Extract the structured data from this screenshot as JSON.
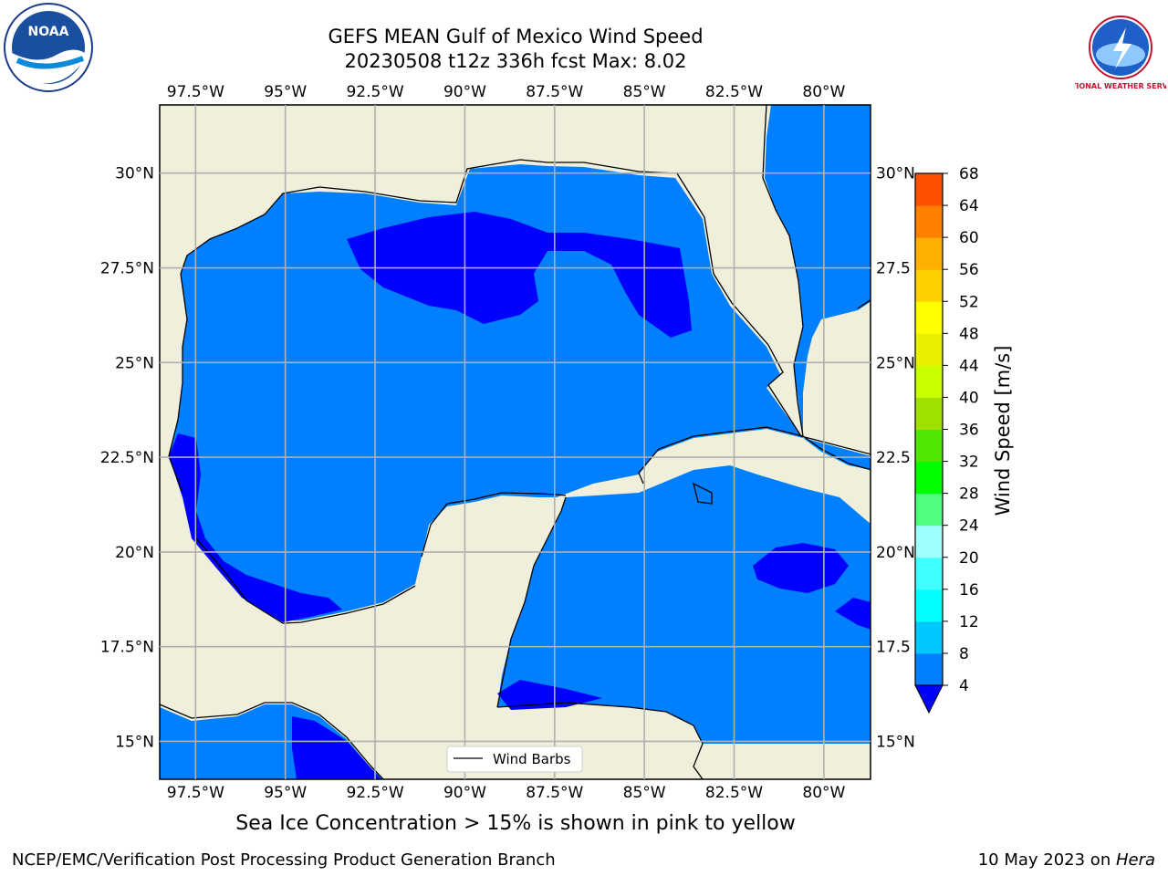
{
  "title": {
    "line1": "GEFS MEAN Gulf of Mexico Wind Speed",
    "line2": "20230508 t12z 336h fcst   Max: 8.02"
  },
  "map": {
    "lon_range": [
      -98.5,
      -78.7
    ],
    "lat_range": [
      14.0,
      31.8
    ],
    "lon_ticks": [
      "97.5°W",
      "95°W",
      "92.5°W",
      "90°W",
      "87.5°W",
      "85°W",
      "82.5°W",
      "80°W"
    ],
    "lon_tick_values": [
      -97.5,
      -95,
      -92.5,
      -90,
      -87.5,
      -85,
      -82.5,
      -80
    ],
    "lat_ticks_left": [
      "30°N",
      "27.5°N",
      "25°N",
      "22.5°N",
      "20°N",
      "17.5°N",
      "15°N"
    ],
    "lat_ticks_right": [
      "30°N",
      "27.5",
      "25°N",
      "22.5",
      "20°N",
      "17.5",
      "15°N"
    ],
    "lat_tick_values": [
      30,
      27.5,
      25,
      22.5,
      20,
      17.5,
      15
    ],
    "grid": true,
    "legend_label": "Wind Barbs",
    "legend_position": "bottom-center"
  },
  "colorbar": {
    "label": "Wind Speed [m/s]",
    "ticks": [
      "4",
      "8",
      "12",
      "16",
      "20",
      "24",
      "28",
      "32",
      "36",
      "40",
      "44",
      "48",
      "52",
      "56",
      "60",
      "64",
      "68"
    ],
    "colors": [
      "#0080ff",
      "#00c8ff",
      "#00ffff",
      "#40ffff",
      "#a0ffff",
      "#50ff80",
      "#00ff00",
      "#50e800",
      "#a0e000",
      "#c8ff00",
      "#e8f000",
      "#ffff00",
      "#ffd000",
      "#ffb000",
      "#ff8000",
      "#ff5000",
      "#ff2000",
      "#ff0000"
    ],
    "underflow_color": "#0000ff"
  },
  "colors": {
    "land": "#efefdc",
    "ocean_main": "#0080ff",
    "ocean_low": "#0000ff"
  },
  "logos": {
    "noaa": "NOAA",
    "nws": "NATIONAL WEATHER SERVICE"
  },
  "subcaption": "Sea Ice Concentration > 15% is shown in pink to yellow",
  "footer": {
    "left": "NCEP/EMC/Verification Post Processing Product Generation Branch",
    "right_prefix": "10 May 2023 on ",
    "right_host": "Hera"
  }
}
